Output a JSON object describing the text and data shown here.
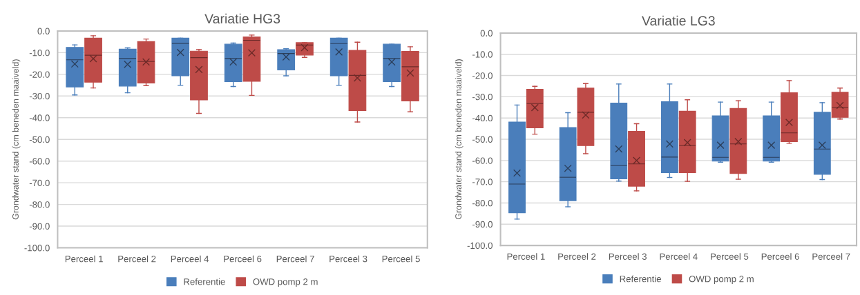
{
  "chart_data": [
    {
      "type": "box",
      "title": "Variatie HG3",
      "ylabel": "Grondwater stand (cm beneden maaiveld)",
      "categories": [
        "Perceel 1",
        "Perceel 2",
        "Perceel 4",
        "Perceel 6",
        "Perceel 7",
        "Perceel 3",
        "Perceel 5"
      ],
      "ylim": [
        -100,
        0
      ],
      "yticks": [
        {
          "value": -100,
          "label": "-100.0"
        },
        {
          "value": -90,
          "label": "-90.0"
        },
        {
          "value": -80,
          "label": "-80.0"
        },
        {
          "value": -70,
          "label": "-70.0"
        },
        {
          "value": -60,
          "label": "-60.0"
        },
        {
          "value": -50,
          "label": "-50.0"
        },
        {
          "value": -40,
          "label": "-40.0"
        },
        {
          "value": -30,
          "label": "-30.0"
        },
        {
          "value": -20,
          "label": "-20.0"
        },
        {
          "value": -10,
          "label": "-10.0"
        },
        {
          "value": 0,
          "label": "0.0"
        }
      ],
      "grid": "y",
      "legend": "bottom",
      "series": [
        {
          "name": "Referentie",
          "color": "#4a7ebb",
          "boxes": [
            {
              "low": -29.5,
              "q1": -25.8,
              "median": -13.3,
              "q3": -7.6,
              "high": -6.4,
              "mean": -15.2
            },
            {
              "low": -28.5,
              "q1": -25.4,
              "median": -12.7,
              "q3": -8.4,
              "high": -7.8,
              "mean": -15.4
            },
            {
              "low": -25.0,
              "q1": -20.7,
              "median": -5.7,
              "q3": -3.3,
              "high": -3.3,
              "mean": -9.9
            },
            {
              "low": -25.6,
              "q1": -23.4,
              "median": -12.7,
              "q3": -6.1,
              "high": -5.6,
              "mean": -14.3
            },
            {
              "low": -20.7,
              "q1": -18.0,
              "median": -10.4,
              "q3": -8.6,
              "high": -8.2,
              "mean": -12.0
            },
            {
              "low": -25.0,
              "q1": -20.7,
              "median": -5.8,
              "q3": -3.3,
              "high": -3.3,
              "mean": -9.7
            },
            {
              "low": -25.6,
              "q1": -23.4,
              "median": -12.7,
              "q3": -6.1,
              "high": -6.1,
              "mean": -14.3
            }
          ]
        },
        {
          "name": "OWD pomp 2 m",
          "color": "#be4b48",
          "boxes": [
            {
              "low": -26.3,
              "q1": -23.6,
              "median": -11.2,
              "q3": -3.3,
              "high": -2.2,
              "mean": -12.8
            },
            {
              "low": -25.2,
              "q1": -24.0,
              "median": -14.1,
              "q3": -4.9,
              "high": -3.7,
              "mean": -14.3
            },
            {
              "low": -38.0,
              "q1": -31.8,
              "median": -12.3,
              "q3": -9.3,
              "high": -8.6,
              "mean": -17.8
            },
            {
              "low": -29.7,
              "q1": -23.2,
              "median": -4.3,
              "q3": -2.7,
              "high": -1.9,
              "mean": -10.1
            },
            {
              "low": -12.2,
              "q1": -11.1,
              "median": -6.5,
              "q3": -5.4,
              "high": -5.4,
              "mean": -7.7
            },
            {
              "low": -42.0,
              "q1": -36.7,
              "median": -20.5,
              "q3": -8.9,
              "high": -5.2,
              "mean": -21.7
            },
            {
              "low": -37.3,
              "q1": -32.3,
              "median": -16.5,
              "q3": -9.4,
              "high": -7.3,
              "mean": -19.4
            }
          ]
        }
      ]
    },
    {
      "type": "box",
      "title": "Variatie LG3",
      "ylabel": "Grondwater stand (cm beneden maaiveld)",
      "categories": [
        "Perceel 1",
        "Perceel 2",
        "Perceel 3",
        "Perceel 4",
        "Perceel 5",
        "Perceel 6",
        "Perceel 7"
      ],
      "ylim": [
        -100,
        0
      ],
      "yticks": [
        {
          "value": -100,
          "label": "-100.0"
        },
        {
          "value": -90,
          "label": "-90.0"
        },
        {
          "value": -80,
          "label": "-80.0"
        },
        {
          "value": -70,
          "label": "-70.0"
        },
        {
          "value": -60,
          "label": "-60.0"
        },
        {
          "value": -50,
          "label": "-50.0"
        },
        {
          "value": -40,
          "label": "-40.0"
        },
        {
          "value": -30,
          "label": "-30.0"
        },
        {
          "value": -20,
          "label": "-20.0"
        },
        {
          "value": -10,
          "label": "-10.0"
        },
        {
          "value": 0,
          "label": "0.0"
        }
      ],
      "grid": "y",
      "legend": "bottom",
      "series": [
        {
          "name": "Referentie",
          "color": "#4a7ebb",
          "boxes": [
            {
              "low": -87.6,
              "q1": -84.6,
              "median": -71.1,
              "q3": -41.9,
              "high": -33.9,
              "mean": -65.9
            },
            {
              "low": -81.8,
              "q1": -78.9,
              "median": -67.9,
              "q3": -44.5,
              "high": -37.5,
              "mean": -63.7
            },
            {
              "low": -69.7,
              "q1": -68.6,
              "median": -62.4,
              "q3": -33.0,
              "high": -24.0,
              "mean": -54.6
            },
            {
              "low": -68.0,
              "q1": -65.7,
              "median": -58.4,
              "q3": -32.3,
              "high": -24.0,
              "mean": -52.2
            },
            {
              "low": -60.8,
              "q1": -60.3,
              "median": -58.5,
              "q3": -39.0,
              "high": -32.5,
              "mean": -52.8
            },
            {
              "low": -60.8,
              "q1": -60.3,
              "median": -58.5,
              "q3": -39.0,
              "high": -32.5,
              "mean": -52.8
            },
            {
              "low": -69.0,
              "q1": -66.5,
              "median": -54.6,
              "q3": -37.3,
              "high": -32.8,
              "mean": -52.8
            }
          ]
        },
        {
          "name": "OWD pomp 2 m",
          "color": "#be4b48",
          "boxes": [
            {
              "low": -47.6,
              "q1": -44.6,
              "median": -33.2,
              "q3": -26.5,
              "high": -25.1,
              "mean": -35.1
            },
            {
              "low": -56.8,
              "q1": -53.0,
              "median": -37.3,
              "q3": -25.9,
              "high": -23.8,
              "mean": -38.6
            },
            {
              "low": -74.3,
              "q1": -72.1,
              "median": -61.6,
              "q3": -46.3,
              "high": -42.7,
              "mean": -60.0
            },
            {
              "low": -69.8,
              "q1": -65.7,
              "median": -53.0,
              "q3": -36.8,
              "high": -31.4,
              "mean": -51.6
            },
            {
              "low": -68.8,
              "q1": -66.1,
              "median": -52.2,
              "q3": -35.5,
              "high": -31.9,
              "mean": -51.1
            },
            {
              "low": -51.9,
              "q1": -51.1,
              "median": -47.0,
              "q3": -28.1,
              "high": -22.4,
              "mean": -42.1
            },
            {
              "low": -40.5,
              "q1": -39.7,
              "median": -34.9,
              "q3": -27.9,
              "high": -25.9,
              "mean": -34.1
            }
          ]
        }
      ]
    }
  ]
}
